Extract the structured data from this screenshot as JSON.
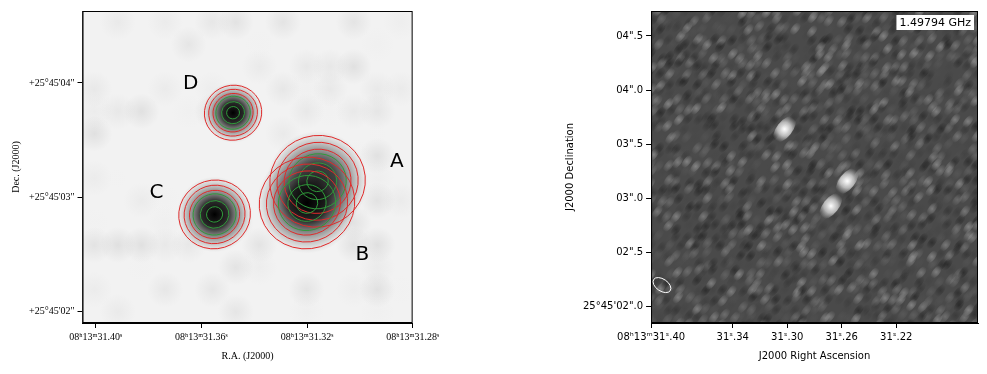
{
  "chart_data": [
    {
      "type": "image",
      "xlabel": "R.A. (J2000)",
      "ylabel": "Dec. (J2000)",
      "xlim": [
        31.405,
        31.28
      ],
      "ylim": [
        1.9,
        4.63
      ],
      "xticks": [
        {
          "value": 31.4,
          "label": "08ʰ13ᵐ31.40ˢ"
        },
        {
          "value": 31.36,
          "label": "08ʰ13ᵐ31.36ˢ"
        },
        {
          "value": 31.32,
          "label": "08ʰ13ᵐ31.32ˢ"
        },
        {
          "value": 31.28,
          "label": "08ʰ13ᵐ31.28ˢ"
        }
      ],
      "yticks": [
        {
          "value": 2,
          "label": "+25°45'02\""
        },
        {
          "value": 3,
          "label": "+25°45'03\""
        },
        {
          "value": 4,
          "label": "+25°45'04\""
        }
      ],
      "sources": [
        {
          "name": "A",
          "ra": 31.316,
          "dec": 3.14,
          "size": 0.2,
          "label_ra": 31.286,
          "label_dec": 3.31
        },
        {
          "name": "B",
          "ra": 31.32,
          "dec": 2.95,
          "size": 0.2,
          "label_ra": 31.299,
          "label_dec": 2.5
        },
        {
          "name": "C",
          "ra": 31.355,
          "dec": 2.85,
          "size": 0.15,
          "label_ra": 31.377,
          "label_dec": 3.04
        },
        {
          "name": "D",
          "ra": 31.348,
          "dec": 3.74,
          "size": 0.12,
          "label_ra": 31.364,
          "label_dec": 3.99
        }
      ]
    },
    {
      "type": "image",
      "title": "1.49794 GHz",
      "xlabel": "J2000 Right Ascension",
      "ylabel": "J2000 Declination",
      "xlim": [
        31.4,
        31.16
      ],
      "ylim": [
        1.85,
        4.73
      ],
      "xticks": [
        {
          "value": 31.4,
          "label": "08ʰ13ᵐ31ˢ.40"
        },
        {
          "value": 31.34,
          "label": "31ˢ.34"
        },
        {
          "value": 31.3,
          "label": "31ˢ.30"
        },
        {
          "value": 31.26,
          "label": "31ˢ.26"
        },
        {
          "value": 31.22,
          "label": "31ˢ.22"
        }
      ],
      "yticks": [
        {
          "value": 2.0,
          "label": "25°45'02\".0"
        },
        {
          "value": 2.5,
          "label": "02\".5"
        },
        {
          "value": 3.0,
          "label": "03\".0"
        },
        {
          "value": 3.5,
          "label": "03\".5"
        },
        {
          "value": 4.0,
          "label": "04\".0"
        },
        {
          "value": 4.5,
          "label": "04\".5"
        }
      ],
      "features": [
        {
          "ra": 31.302,
          "dec": 3.64
        },
        {
          "ra": 31.256,
          "dec": 3.16
        },
        {
          "ra": 31.268,
          "dec": 2.93
        }
      ],
      "beam": {
        "ra": 31.392,
        "dec": 2.2
      }
    }
  ]
}
